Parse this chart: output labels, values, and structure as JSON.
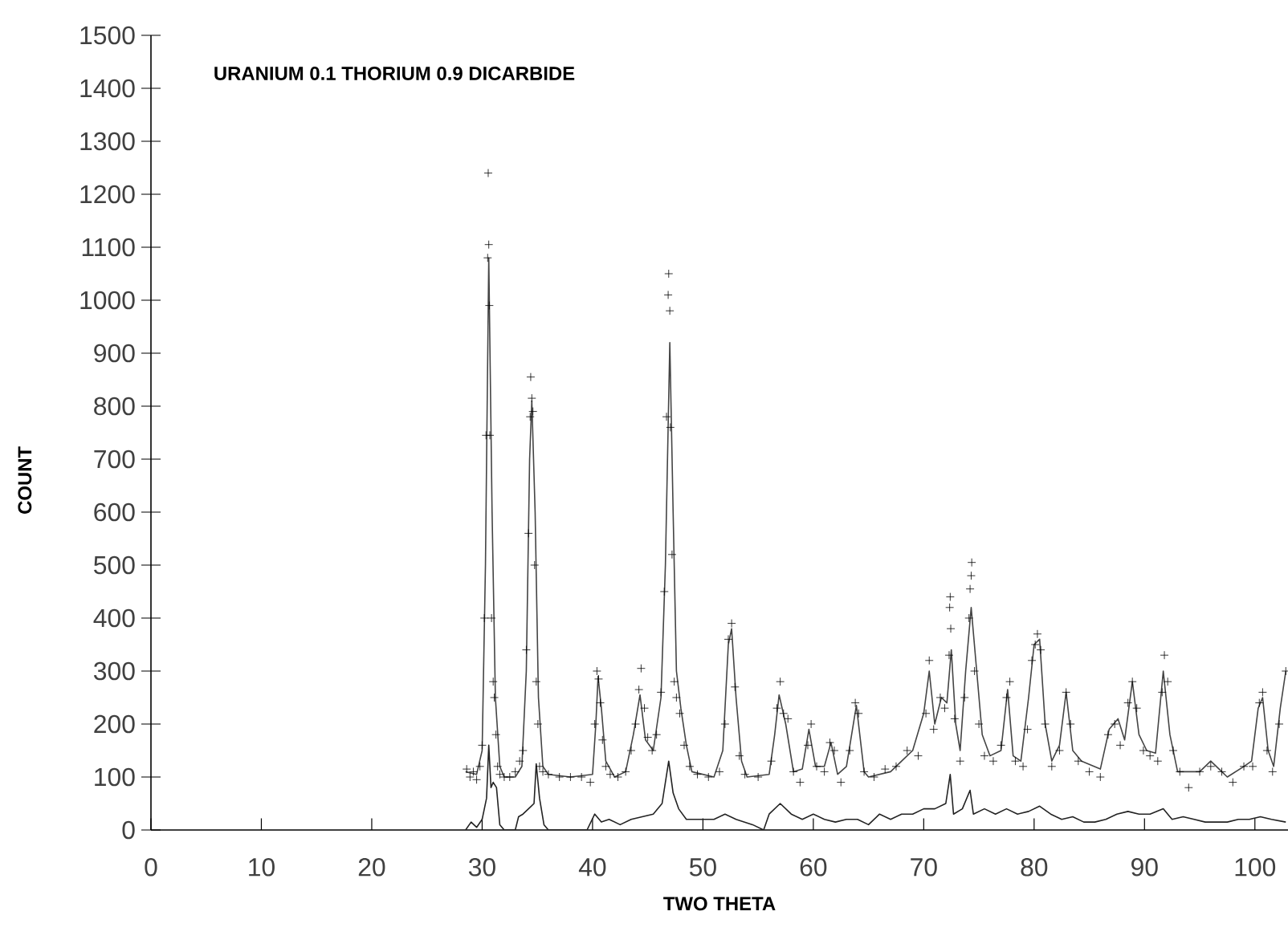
{
  "chart_data": {
    "type": "line",
    "title": "URANIUM 0.1 THORIUM 0.9 DICARBIDE",
    "xlabel": "TWO THETA",
    "ylabel": "COUNT",
    "xlim": [
      0,
      103
    ],
    "ylim": [
      0,
      1500
    ],
    "xticks": [
      0,
      10,
      20,
      30,
      40,
      50,
      60,
      70,
      80,
      90,
      100
    ],
    "yticks": [
      0,
      100,
      200,
      300,
      400,
      500,
      600,
      700,
      800,
      900,
      1000,
      1100,
      1200,
      1300,
      1400,
      1500
    ],
    "grid": false,
    "series": [
      {
        "type": "scatter",
        "marker": "cross",
        "color": "#000000",
        "x": [
          28.6,
          28.9,
          29.2,
          29.5,
          29.8,
          30.0,
          30.2,
          30.35,
          30.5,
          30.55,
          30.6,
          30.65,
          30.7,
          30.85,
          31.0,
          31.1,
          31.25,
          31.4,
          31.6,
          32.0,
          32.5,
          33.0,
          33.4,
          33.7,
          34.0,
          34.2,
          34.35,
          34.4,
          34.5,
          34.6,
          34.75,
          34.9,
          35.05,
          35.2,
          35.5,
          36.0,
          37.0,
          38.0,
          39.0,
          39.8,
          40.2,
          40.4,
          40.55,
          40.7,
          40.9,
          41.2,
          41.6,
          42.3,
          43.0,
          43.5,
          43.9,
          44.2,
          44.4,
          44.7,
          45.0,
          45.4,
          45.8,
          46.2,
          46.5,
          46.7,
          46.85,
          46.9,
          47.0,
          47.05,
          47.2,
          47.4,
          47.6,
          47.9,
          48.3,
          48.8,
          49.5,
          50.5,
          51.5,
          52.0,
          52.3,
          52.6,
          52.9,
          53.3,
          53.8,
          55.0,
          56.2,
          56.7,
          57.0,
          57.3,
          57.7,
          58.2,
          58.8,
          59.5,
          59.8,
          60.3,
          61.0,
          61.5,
          61.9,
          62.5,
          63.3,
          63.8,
          64.1,
          64.6,
          65.5,
          66.5,
          67.5,
          68.5,
          69.5,
          70.2,
          70.5,
          70.9,
          71.5,
          71.9,
          72.3,
          72.35,
          72.4,
          72.45,
          72.8,
          73.3,
          73.7,
          74.1,
          74.2,
          74.3,
          74.35,
          74.6,
          75.0,
          75.5,
          76.3,
          77.0,
          77.5,
          77.8,
          78.3,
          79.0,
          79.4,
          79.8,
          80.1,
          80.3,
          80.6,
          81.0,
          81.6,
          82.3,
          82.9,
          83.3,
          84.0,
          85.0,
          86.0,
          86.7,
          87.3,
          87.8,
          88.5,
          88.9,
          89.3,
          89.9,
          90.5,
          91.2,
          91.6,
          91.8,
          92.1,
          92.6,
          93.2,
          94.0,
          95.0,
          96.0,
          97.0,
          98.0,
          99.0,
          99.8,
          100.4,
          100.7,
          101.1,
          101.6,
          102.2,
          102.8
        ],
        "values": [
          115,
          100,
          110,
          95,
          120,
          160,
          400,
          745,
          1080,
          1240,
          1105,
          990,
          745,
          400,
          280,
          250,
          180,
          120,
          105,
          100,
          100,
          110,
          130,
          150,
          340,
          560,
          780,
          855,
          815,
          790,
          500,
          280,
          200,
          120,
          110,
          105,
          100,
          100,
          100,
          90,
          200,
          300,
          285,
          240,
          170,
          120,
          105,
          100,
          110,
          150,
          200,
          265,
          305,
          230,
          175,
          150,
          180,
          260,
          450,
          780,
          1010,
          1050,
          980,
          760,
          520,
          280,
          250,
          220,
          160,
          120,
          105,
          100,
          110,
          200,
          360,
          390,
          270,
          140,
          105,
          100,
          130,
          230,
          280,
          220,
          210,
          110,
          90,
          160,
          200,
          120,
          110,
          165,
          150,
          90,
          150,
          240,
          220,
          110,
          100,
          115,
          120,
          150,
          140,
          220,
          320,
          190,
          250,
          230,
          330,
          420,
          440,
          380,
          210,
          130,
          250,
          400,
          455,
          480,
          505,
          300,
          200,
          140,
          130,
          160,
          250,
          280,
          130,
          120,
          190,
          320,
          350,
          370,
          340,
          200,
          120,
          150,
          260,
          200,
          130,
          110,
          100,
          180,
          200,
          160,
          240,
          280,
          230,
          150,
          140,
          130,
          260,
          330,
          280,
          150,
          110,
          80,
          110,
          120,
          110,
          90,
          120,
          120,
          240,
          260,
          150,
          110,
          200,
          300
        ]
      },
      {
        "type": "line",
        "marker": "none",
        "color": "#444444",
        "x": [
          28.5,
          29.5,
          30.0,
          30.3,
          30.6,
          30.9,
          31.2,
          31.6,
          32.0,
          33.0,
          33.6,
          34.0,
          34.3,
          34.5,
          34.8,
          35.1,
          35.5,
          36.0,
          38.0,
          40.0,
          40.3,
          40.5,
          40.8,
          41.2,
          42.0,
          43.0,
          43.7,
          44.3,
          44.8,
          45.5,
          46.2,
          46.6,
          47.0,
          47.3,
          47.6,
          48.0,
          48.5,
          49.0,
          51.0,
          51.8,
          52.3,
          52.6,
          53.0,
          53.5,
          54.0,
          56.0,
          56.5,
          56.9,
          57.5,
          58.2,
          59.0,
          59.6,
          60.2,
          61.0,
          61.6,
          62.2,
          63.0,
          63.9,
          64.6,
          65.0,
          67.0,
          68.0,
          69.0,
          70.0,
          70.5,
          71.0,
          71.6,
          72.1,
          72.5,
          72.9,
          73.3,
          73.8,
          74.3,
          74.8,
          75.3,
          76.0,
          77.0,
          77.6,
          78.1,
          78.8,
          79.5,
          80.0,
          80.5,
          81.0,
          81.6,
          82.3,
          82.9,
          83.5,
          84.3,
          86.0,
          86.8,
          87.6,
          88.2,
          88.9,
          89.5,
          90.2,
          91.0,
          91.7,
          92.3,
          93.0,
          95.0,
          96.0,
          97.5,
          99.0,
          99.7,
          100.3,
          100.7,
          101.2,
          101.7,
          102.3,
          102.8
        ],
        "values": [
          110,
          105,
          150,
          500,
          1080,
          600,
          250,
          120,
          100,
          100,
          120,
          300,
          700,
          810,
          600,
          250,
          120,
          105,
          100,
          105,
          200,
          290,
          230,
          130,
          100,
          110,
          180,
          255,
          170,
          150,
          250,
          500,
          920,
          600,
          300,
          230,
          160,
          110,
          100,
          150,
          350,
          380,
          250,
          130,
          100,
          105,
          180,
          255,
          200,
          110,
          115,
          190,
          120,
          120,
          165,
          105,
          120,
          235,
          110,
          100,
          110,
          130,
          150,
          220,
          300,
          200,
          250,
          240,
          340,
          200,
          150,
          300,
          420,
          300,
          180,
          140,
          150,
          265,
          140,
          130,
          250,
          350,
          360,
          200,
          130,
          160,
          260,
          150,
          130,
          115,
          190,
          210,
          170,
          280,
          180,
          150,
          145,
          300,
          180,
          110,
          110,
          130,
          100,
          120,
          130,
          230,
          250,
          150,
          120,
          230,
          300
        ]
      },
      {
        "type": "line",
        "marker": "none",
        "color": "#222222",
        "x": [
          28.5,
          29.0,
          29.5,
          30.0,
          30.4,
          30.6,
          30.8,
          31.0,
          31.3,
          31.6,
          32.0,
          33.0,
          33.3,
          33.7,
          34.2,
          34.7,
          34.9,
          35.2,
          35.6,
          36.0,
          39.5,
          40.2,
          40.8,
          41.5,
          42.5,
          43.5,
          44.5,
          45.5,
          46.3,
          46.9,
          47.3,
          47.8,
          48.5,
          49.5,
          51.0,
          52.0,
          53.0,
          54.5,
          55.5,
          56.0,
          57.0,
          58.0,
          59.0,
          60.0,
          61.0,
          62.0,
          63.0,
          64.0,
          65.0,
          66.0,
          67.0,
          68.0,
          69.0,
          70.0,
          71.0,
          72.0,
          72.4,
          72.7,
          73.5,
          74.2,
          74.5,
          75.5,
          76.5,
          77.5,
          78.5,
          79.5,
          80.5,
          81.5,
          82.5,
          83.5,
          84.5,
          85.5,
          86.5,
          87.5,
          88.5,
          89.5,
          90.5,
          91.7,
          92.5,
          93.5,
          94.5,
          95.5,
          96.5,
          97.5,
          98.5,
          99.5,
          100.5,
          101.5,
          102.8
        ],
        "values": [
          0,
          15,
          5,
          20,
          60,
          160,
          80,
          90,
          80,
          10,
          0,
          0,
          25,
          30,
          40,
          50,
          125,
          60,
          10,
          0,
          0,
          30,
          15,
          20,
          10,
          20,
          25,
          30,
          50,
          130,
          70,
          40,
          20,
          20,
          20,
          30,
          20,
          10,
          0,
          30,
          50,
          30,
          20,
          30,
          20,
          15,
          20,
          20,
          10,
          30,
          20,
          30,
          30,
          40,
          40,
          50,
          105,
          30,
          40,
          75,
          30,
          40,
          30,
          40,
          30,
          35,
          45,
          30,
          20,
          25,
          15,
          15,
          20,
          30,
          35,
          30,
          30,
          40,
          20,
          25,
          20,
          15,
          15,
          15,
          20,
          20,
          25,
          20,
          15
        ]
      }
    ]
  }
}
